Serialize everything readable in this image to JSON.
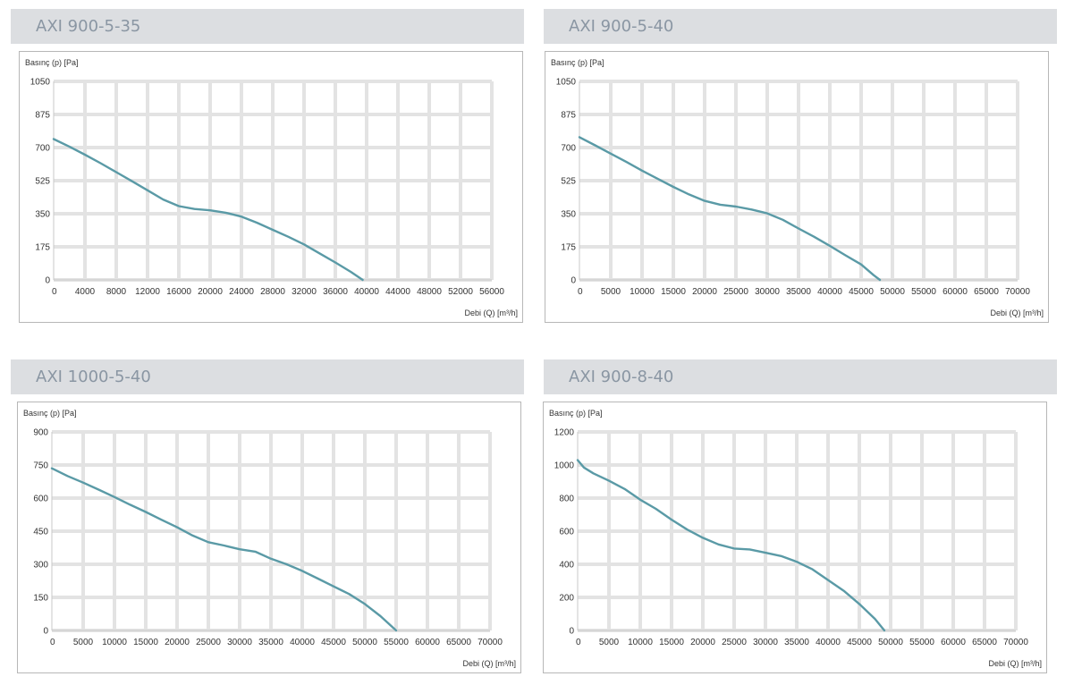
{
  "colors": {
    "header_bg": "#dcdee1",
    "header_text": "#8a96a3",
    "grid": "#e3e3e3",
    "curve": "#5a9aa6",
    "border": "#b7b7b7"
  },
  "chart_data": [
    {
      "type": "line",
      "title": "AXI 900-5-35",
      "ylabel": "Basınç (p) [Pa]",
      "xlabel": "Debi (Q) [m³/h]",
      "xlim": [
        0,
        56000
      ],
      "ylim": [
        0,
        1050
      ],
      "xticks": [
        "0",
        "4000",
        "8000",
        "12000",
        "16000",
        "20000",
        "24000",
        "28000",
        "32000",
        "36000",
        "40000",
        "44000",
        "48000",
        "52000",
        "56000"
      ],
      "yticks": [
        "1050",
        "875",
        "700",
        "525",
        "350",
        "175",
        "0"
      ],
      "grid": true,
      "x": [
        0,
        2000,
        4000,
        6000,
        8000,
        10000,
        12000,
        14000,
        16000,
        18000,
        20000,
        22000,
        24000,
        26000,
        28000,
        30000,
        32000,
        34000,
        36000,
        38000,
        39500
      ],
      "y": [
        745,
        705,
        662,
        617,
        570,
        522,
        474,
        425,
        390,
        375,
        368,
        355,
        335,
        302,
        265,
        228,
        188,
        140,
        92,
        42,
        0
      ]
    },
    {
      "type": "line",
      "title": "AXI 900-5-40",
      "ylabel": "Basınç (p) [Pa]",
      "xlabel": "Debi (Q) [m³/h]",
      "xlim": [
        0,
        70000
      ],
      "ylim": [
        0,
        1050
      ],
      "xticks": [
        "0",
        "5000",
        "10000",
        "15000",
        "20000",
        "25000",
        "30000",
        "35000",
        "40000",
        "45000",
        "50000",
        "55000",
        "60000",
        "65000",
        "70000"
      ],
      "yticks": [
        "1050",
        "875",
        "700",
        "525",
        "350",
        "175",
        "0"
      ],
      "grid": true,
      "x": [
        0,
        2500,
        5000,
        7500,
        10000,
        12500,
        15000,
        17500,
        20000,
        22500,
        25000,
        27500,
        30000,
        32500,
        35000,
        37500,
        40000,
        42500,
        45000,
        47000,
        48000
      ],
      "y": [
        755,
        712,
        668,
        624,
        578,
        535,
        492,
        452,
        418,
        398,
        388,
        372,
        352,
        318,
        272,
        228,
        180,
        130,
        82,
        25,
        0
      ]
    },
    {
      "type": "line",
      "title": "AXI 1000-5-40",
      "ylabel": "Basınç (p) [Pa]",
      "xlabel": "Debi (Q) [m³/h]",
      "xlim": [
        0,
        70000
      ],
      "ylim": [
        0,
        900
      ],
      "xticks": [
        "0",
        "5000",
        "10000",
        "15000",
        "20000",
        "25000",
        "30000",
        "35000",
        "40000",
        "45000",
        "50000",
        "55000",
        "60000",
        "65000",
        "70000"
      ],
      "yticks": [
        "900",
        "750",
        "600",
        "450",
        "300",
        "150",
        "0"
      ],
      "grid": true,
      "x": [
        0,
        2500,
        5000,
        7500,
        10000,
        12500,
        15000,
        17500,
        20000,
        22500,
        25000,
        27500,
        30000,
        32500,
        35000,
        37500,
        40000,
        42500,
        45000,
        47500,
        50000,
        52500,
        55000
      ],
      "y": [
        735,
        700,
        670,
        638,
        605,
        570,
        537,
        502,
        468,
        430,
        400,
        385,
        368,
        357,
        325,
        300,
        270,
        235,
        200,
        165,
        120,
        65,
        0
      ]
    },
    {
      "type": "line",
      "title": "AXI 900-8-40",
      "ylabel": "Basınç (p) [Pa]",
      "xlabel": "Debi (Q) [m³/h]",
      "xlim": [
        0,
        70000
      ],
      "ylim": [
        0,
        1200
      ],
      "xticks": [
        "0",
        "5000",
        "10000",
        "15000",
        "20000",
        "25000",
        "30000",
        "35000",
        "40000",
        "45000",
        "50000",
        "55000",
        "60000",
        "65000",
        "70000"
      ],
      "yticks": [
        "1200",
        "1000",
        "800",
        "600",
        "400",
        "200",
        "0"
      ],
      "grid": true,
      "x": [
        0,
        1000,
        2500,
        5000,
        7500,
        10000,
        12500,
        15000,
        17500,
        20000,
        22500,
        25000,
        27500,
        30000,
        32500,
        35000,
        37500,
        40000,
        42500,
        45000,
        47500,
        49000
      ],
      "y": [
        1030,
        985,
        950,
        905,
        855,
        790,
        735,
        670,
        610,
        560,
        520,
        495,
        490,
        470,
        450,
        415,
        370,
        305,
        240,
        160,
        70,
        0
      ]
    }
  ]
}
